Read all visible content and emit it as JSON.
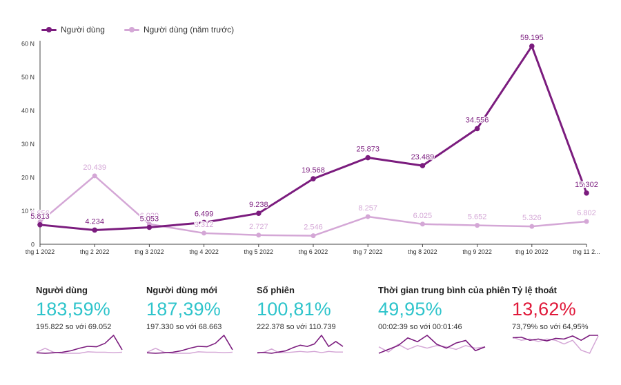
{
  "colors": {
    "current": "#7b1c7e",
    "previous": "#d4a7d6",
    "positive": "#2ec4cb",
    "negative": "#e0193a",
    "axis": "#444444"
  },
  "legend": [
    {
      "label": "Người dùng"
    },
    {
      "label": "Người dùng (năm trước)"
    }
  ],
  "chart_data": {
    "type": "line",
    "categories": [
      "thg 1 2022",
      "thg 2 2022",
      "thg 3 2022",
      "thg 4 2022",
      "thg 5 2022",
      "thg 6 2022",
      "thg 7 2022",
      "thg 8 2022",
      "thg 9 2022",
      "thg 10 2022",
      "thg 11 2..."
    ],
    "ylim": [
      0,
      60000
    ],
    "yticks": [
      0,
      10000,
      20000,
      30000,
      40000,
      50000,
      60000
    ],
    "ytick_labels": [
      "0",
      "10 N",
      "20 N",
      "30 N",
      "40 N",
      "50 N",
      "60 N"
    ],
    "grid": false,
    "legend_position": "top-left",
    "series": [
      {
        "name": "Người dùng",
        "values": [
          5813,
          4234,
          5053,
          6499,
          9238,
          19568,
          25873,
          23489,
          34556,
          59195,
          15302
        ],
        "labels": [
          "5.813",
          "4.234",
          "5.053",
          "6.499",
          "9.238",
          "19.568",
          "25.873",
          "23.489",
          "34.556",
          "59.195",
          "15.302"
        ]
      },
      {
        "name": "Người dùng (năm trước)",
        "values": [
          6656,
          20439,
          6029,
          3312,
          2727,
          2546,
          8257,
          6025,
          5652,
          5326,
          6802
        ],
        "labels": [
          "6.656",
          "20.439",
          "6.029",
          "3.312",
          "2.727",
          "2.546",
          "8.257",
          "6.025",
          "5.652",
          "5.326",
          "6.802"
        ]
      }
    ]
  },
  "kpis": [
    {
      "title": "Người dùng",
      "value": "183,59%",
      "status": "positive",
      "compare": "195.822 so với 69.052",
      "spark_current": [
        3,
        2,
        3,
        4,
        7,
        12,
        16,
        15,
        22,
        38,
        9
      ],
      "spark_previous": [
        4,
        12,
        4,
        2,
        2,
        2,
        5,
        4,
        4,
        3,
        4
      ]
    },
    {
      "title": "Người dùng mới",
      "value": "187,39%",
      "status": "positive",
      "compare": "197.330 so với 68.663",
      "spark_current": [
        3,
        2,
        3,
        4,
        7,
        12,
        16,
        15,
        22,
        38,
        9
      ],
      "spark_previous": [
        4,
        12,
        4,
        2,
        2,
        2,
        5,
        4,
        4,
        3,
        4
      ]
    },
    {
      "title": "Số phiên",
      "value": "100,81%",
      "status": "positive",
      "compare": "222.378 so với 110.739",
      "spark_current": [
        4,
        4,
        3,
        5,
        7,
        12,
        16,
        14,
        18,
        32,
        14,
        22,
        14
      ],
      "spark_previous": [
        3,
        5,
        10,
        4,
        4,
        5,
        6,
        5,
        6,
        4,
        6,
        5,
        5
      ]
    },
    {
      "title": "Thời gian trung bình của phiên",
      "value": "49,95%",
      "status": "positive",
      "compare": "00:02:39 so với 00:01:46",
      "spark_current": [
        6,
        12,
        18,
        30,
        24,
        34,
        20,
        14,
        22,
        26,
        10,
        16
      ],
      "spark_previous": [
        16,
        8,
        20,
        12,
        18,
        14,
        18,
        16,
        12,
        18,
        14,
        16
      ]
    },
    {
      "title": "Tỷ lệ thoát",
      "value": "13,62%",
      "status": "negative",
      "compare": "73,79% so với 64,95%",
      "spark_current": [
        30,
        31,
        26,
        28,
        25,
        29,
        28,
        33,
        26,
        34,
        34
      ],
      "spark_previous": [
        31,
        26,
        28,
        24,
        28,
        26,
        20,
        26,
        10,
        5,
        33
      ]
    }
  ]
}
